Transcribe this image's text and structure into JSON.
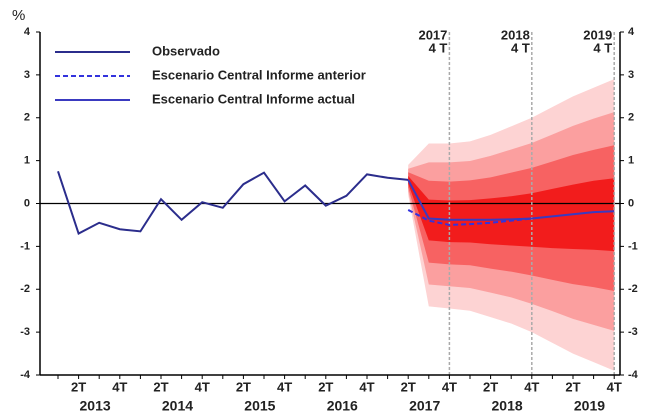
{
  "chart_data": {
    "type": "fan",
    "ylabel": "%",
    "categories": [
      null,
      "2T",
      null,
      "4T",
      null,
      "2T",
      null,
      "4T",
      null,
      "2T",
      null,
      "4T",
      null,
      "2T",
      null,
      "4T",
      null,
      "2T",
      null,
      "4T",
      null,
      "2T",
      null,
      "4T",
      null,
      "2T",
      null,
      "4T"
    ],
    "years": [
      "2013",
      "2014",
      "2015",
      "2016",
      "2017",
      "2018",
      "2019"
    ],
    "ylim": [
      -4,
      4
    ],
    "yticks": [
      -4,
      -3,
      -2,
      -1,
      0,
      1,
      2,
      3,
      4
    ],
    "annotations": [
      {
        "year": "2017",
        "quarter": "4 T"
      },
      {
        "year": "2018",
        "quarter": "4 T"
      },
      {
        "year": "2019",
        "quarter": "4 T"
      }
    ],
    "legend": "upper left",
    "series": [
      {
        "name": "Observado",
        "color": "#2b2d8c",
        "dash": false,
        "values": [
          0.75,
          -0.7,
          -0.45,
          -0.6,
          -0.65,
          0.1,
          -0.38,
          0.03,
          -0.1,
          0.45,
          0.72,
          0.05,
          0.42,
          -0.05,
          0.18,
          0.68,
          0.6,
          0.55,
          null,
          null,
          null,
          null,
          null,
          null,
          null,
          null,
          null,
          null
        ]
      },
      {
        "name": "Escenario Central Informe anterior",
        "color": "#3333dd",
        "dash": true,
        "values": [
          null,
          null,
          null,
          null,
          null,
          null,
          null,
          null,
          null,
          null,
          null,
          null,
          null,
          null,
          null,
          null,
          null,
          -0.15,
          -0.4,
          -0.5,
          -0.48,
          -0.45,
          -0.4,
          -0.35,
          null,
          null,
          null,
          null
        ]
      },
      {
        "name": "Escenario Central Informe actual",
        "color": "#3a3ac0",
        "dash": false,
        "values": [
          null,
          null,
          null,
          null,
          null,
          null,
          null,
          null,
          null,
          null,
          null,
          null,
          null,
          null,
          null,
          null,
          null,
          0.55,
          -0.35,
          -0.38,
          -0.38,
          -0.38,
          -0.37,
          -0.35,
          -0.3,
          -0.25,
          -0.2,
          -0.18
        ]
      }
    ],
    "bands": [
      {
        "color": "#fdd3d3",
        "upper": [
          null,
          null,
          null,
          null,
          null,
          null,
          null,
          null,
          null,
          null,
          null,
          null,
          null,
          null,
          null,
          null,
          null,
          0.9,
          1.4,
          1.4,
          1.45,
          1.6,
          1.8,
          2.0,
          2.25,
          2.5,
          2.7,
          2.9
        ],
        "lower": [
          null,
          null,
          null,
          null,
          null,
          null,
          null,
          null,
          null,
          null,
          null,
          null,
          null,
          null,
          null,
          null,
          null,
          0.2,
          -2.4,
          -2.45,
          -2.5,
          -2.65,
          -2.8,
          -3.0,
          -3.25,
          -3.5,
          -3.7,
          -3.9
        ]
      },
      {
        "color": "#fb9f9f",
        "upper": [
          null,
          null,
          null,
          null,
          null,
          null,
          null,
          null,
          null,
          null,
          null,
          null,
          null,
          null,
          null,
          null,
          null,
          0.81,
          0.96,
          0.96,
          0.99,
          1.11,
          1.26,
          1.41,
          1.61,
          1.81,
          1.98,
          2.13
        ],
        "lower": [
          null,
          null,
          null,
          null,
          null,
          null,
          null,
          null,
          null,
          null,
          null,
          null,
          null,
          null,
          null,
          null,
          null,
          0.29,
          -1.89,
          -1.93,
          -1.97,
          -2.08,
          -2.19,
          -2.34,
          -2.51,
          -2.69,
          -2.83,
          -2.97
        ]
      },
      {
        "color": "#f76262",
        "upper": [
          null,
          null,
          null,
          null,
          null,
          null,
          null,
          null,
          null,
          null,
          null,
          null,
          null,
          null,
          null,
          null,
          null,
          0.73,
          0.53,
          0.51,
          0.54,
          0.61,
          0.72,
          0.83,
          0.98,
          1.13,
          1.25,
          1.36
        ],
        "lower": [
          null,
          null,
          null,
          null,
          null,
          null,
          null,
          null,
          null,
          null,
          null,
          null,
          null,
          null,
          null,
          null,
          null,
          0.38,
          -1.38,
          -1.42,
          -1.44,
          -1.52,
          -1.59,
          -1.68,
          -1.78,
          -1.88,
          -1.95,
          -2.04
        ]
      },
      {
        "color": "#f21c1c",
        "upper": [
          null,
          null,
          null,
          null,
          null,
          null,
          null,
          null,
          null,
          null,
          null,
          null,
          null,
          null,
          null,
          null,
          null,
          0.64,
          0.09,
          0.07,
          0.08,
          0.12,
          0.17,
          0.24,
          0.34,
          0.44,
          0.53,
          0.59
        ],
        "lower": [
          null,
          null,
          null,
          null,
          null,
          null,
          null,
          null,
          null,
          null,
          null,
          null,
          null,
          null,
          null,
          null,
          null,
          0.46,
          -0.86,
          -0.9,
          -0.91,
          -0.95,
          -0.98,
          -1.01,
          -1.04,
          -1.06,
          -1.08,
          -1.11
        ]
      }
    ]
  }
}
